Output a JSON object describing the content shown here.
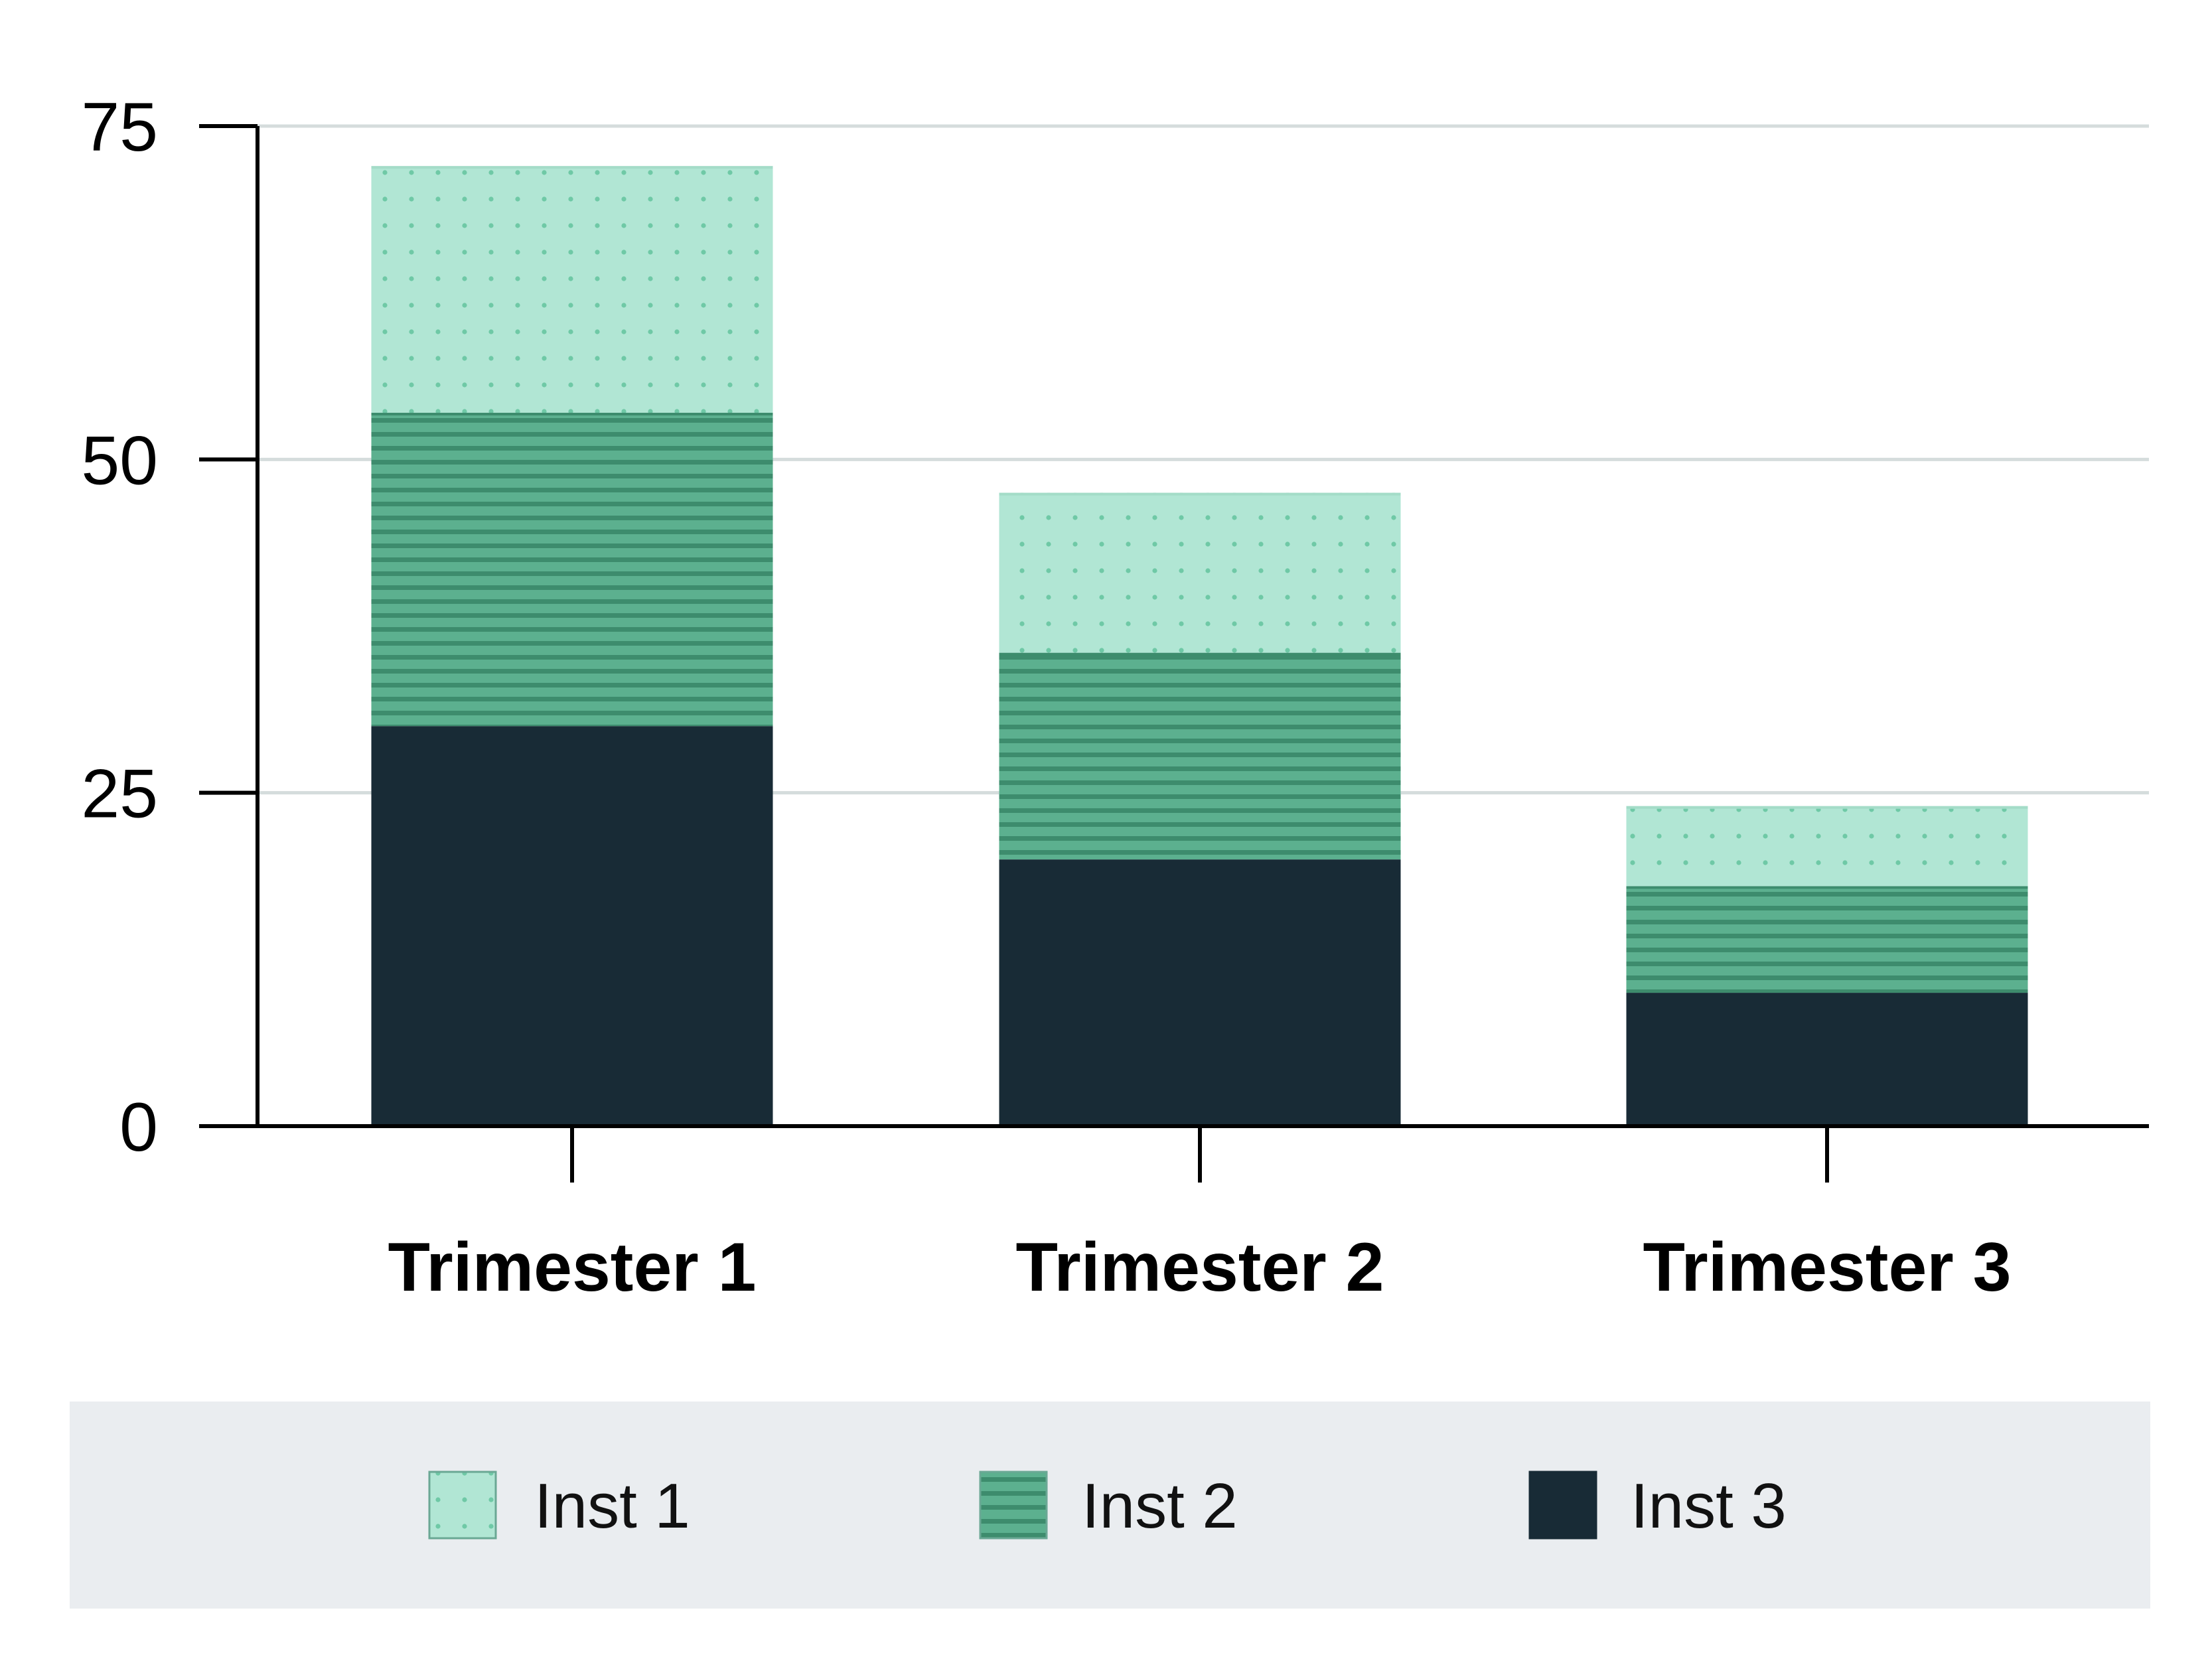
{
  "chart_data": {
    "type": "bar",
    "stacked": true,
    "title": "",
    "xlabel": "",
    "ylabel": "",
    "categories": [
      "Trimester 1",
      "Trimester 2",
      "Trimester 3"
    ],
    "series": [
      {
        "name": "Inst 3",
        "values": [
          30,
          20,
          10
        ],
        "color": "#182b36",
        "pattern": "solid"
      },
      {
        "name": "Inst 2",
        "values": [
          23.5,
          15.5,
          8
        ],
        "color": "#5cb08f",
        "pattern": "horizontal-lines"
      },
      {
        "name": "Inst 1",
        "values": [
          18.5,
          12,
          6
        ],
        "color": "#b1e6d4",
        "pattern": "dots"
      }
    ],
    "ylim": [
      0,
      75
    ],
    "yticks": [
      0,
      25,
      50,
      75
    ],
    "grid": true,
    "legend": {
      "position": "bottom",
      "entries": [
        "Inst 1",
        "Inst 2",
        "Inst 3"
      ]
    }
  }
}
